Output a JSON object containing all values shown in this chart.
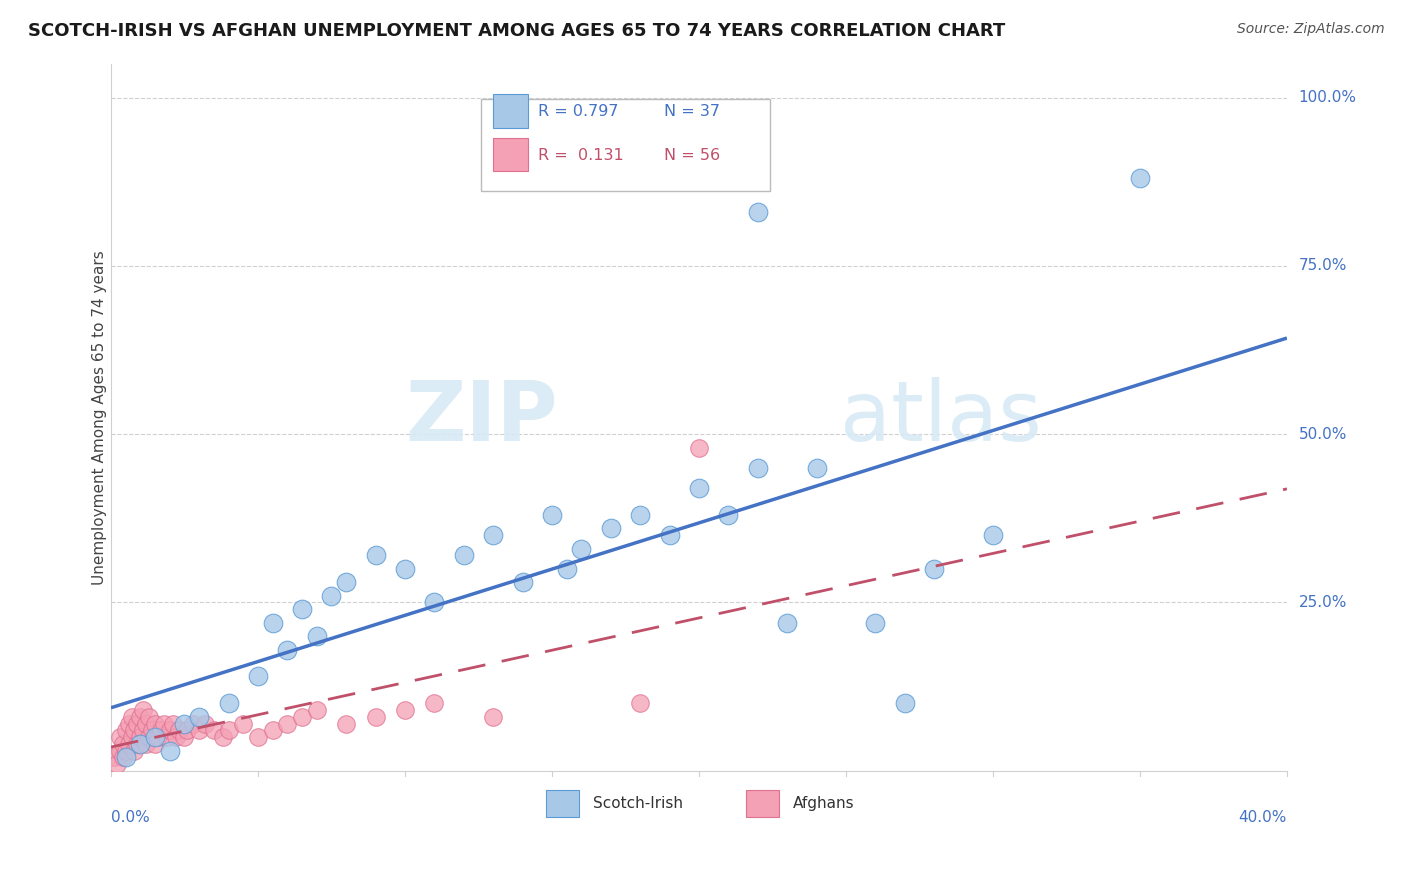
{
  "title": "SCOTCH-IRISH VS AFGHAN UNEMPLOYMENT AMONG AGES 65 TO 74 YEARS CORRELATION CHART",
  "source": "Source: ZipAtlas.com",
  "ylabel": "Unemployment Among Ages 65 to 74 years",
  "xmin": 0.0,
  "xmax": 0.4,
  "ymin": 0.0,
  "ymax": 1.05,
  "scotch_irish_R": 0.797,
  "scotch_irish_N": 37,
  "afghan_R": 0.131,
  "afghan_N": 56,
  "scotch_irish_color": "#A8C8E8",
  "scotch_irish_edge_color": "#5B9BD5",
  "scotch_irish_line_color": "#4472C4",
  "afghan_color": "#F4A0B5",
  "afghan_edge_color": "#E07090",
  "afghan_line_color": "#C0506A",
  "grid_color": "#D0D0D0",
  "ytick_vals": [
    0.25,
    0.5,
    0.75,
    1.0
  ],
  "ytick_labels": [
    "25.0%",
    "50.0%",
    "75.0%",
    "100.0%"
  ],
  "watermark_color": "#D8EAF5",
  "scotch_irish_x": [
    0.005,
    0.01,
    0.015,
    0.02,
    0.025,
    0.03,
    0.04,
    0.05,
    0.055,
    0.06,
    0.065,
    0.07,
    0.075,
    0.08,
    0.09,
    0.1,
    0.11,
    0.12,
    0.13,
    0.14,
    0.15,
    0.155,
    0.16,
    0.17,
    0.18,
    0.19,
    0.2,
    0.21,
    0.22,
    0.23,
    0.24,
    0.26,
    0.28,
    0.3,
    0.27,
    0.35,
    0.22
  ],
  "scotch_irish_y": [
    0.02,
    0.04,
    0.05,
    0.03,
    0.07,
    0.08,
    0.1,
    0.14,
    0.22,
    0.18,
    0.24,
    0.2,
    0.26,
    0.28,
    0.32,
    0.3,
    0.25,
    0.32,
    0.35,
    0.28,
    0.38,
    0.3,
    0.33,
    0.36,
    0.38,
    0.35,
    0.42,
    0.38,
    0.45,
    0.22,
    0.45,
    0.22,
    0.3,
    0.35,
    0.1,
    0.88,
    0.83
  ],
  "afghan_x": [
    0.001,
    0.002,
    0.003,
    0.003,
    0.004,
    0.004,
    0.005,
    0.005,
    0.006,
    0.006,
    0.007,
    0.007,
    0.008,
    0.008,
    0.009,
    0.009,
    0.01,
    0.01,
    0.011,
    0.011,
    0.012,
    0.012,
    0.013,
    0.013,
    0.014,
    0.015,
    0.015,
    0.016,
    0.017,
    0.018,
    0.019,
    0.02,
    0.021,
    0.022,
    0.023,
    0.025,
    0.026,
    0.028,
    0.03,
    0.032,
    0.035,
    0.038,
    0.04,
    0.045,
    0.05,
    0.055,
    0.06,
    0.065,
    0.07,
    0.08,
    0.09,
    0.1,
    0.11,
    0.13,
    0.18,
    0.2
  ],
  "afghan_y": [
    0.02,
    0.01,
    0.03,
    0.05,
    0.02,
    0.04,
    0.03,
    0.06,
    0.04,
    0.07,
    0.05,
    0.08,
    0.03,
    0.06,
    0.04,
    0.07,
    0.05,
    0.08,
    0.06,
    0.09,
    0.04,
    0.07,
    0.05,
    0.08,
    0.06,
    0.04,
    0.07,
    0.05,
    0.06,
    0.07,
    0.05,
    0.06,
    0.07,
    0.05,
    0.06,
    0.05,
    0.06,
    0.07,
    0.06,
    0.07,
    0.06,
    0.05,
    0.06,
    0.07,
    0.05,
    0.06,
    0.07,
    0.08,
    0.09,
    0.07,
    0.08,
    0.09,
    0.1,
    0.08,
    0.1,
    0.48
  ],
  "legend_R1_text": "R = 0.797",
  "legend_N1_text": "N = 37",
  "legend_R2_text": "R =  0.131",
  "legend_N2_text": "N = 56"
}
